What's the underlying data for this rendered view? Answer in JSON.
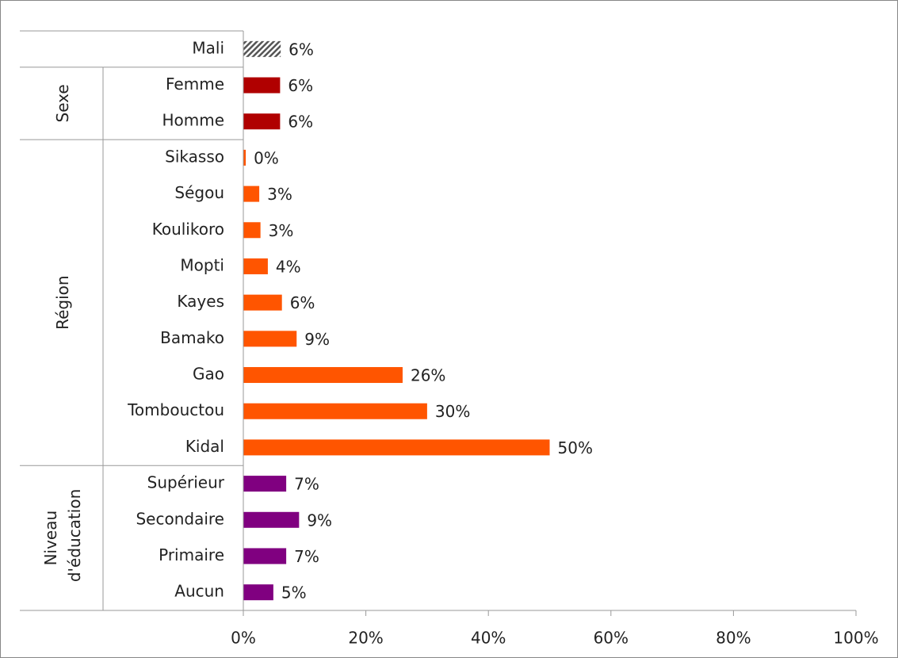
{
  "chart_data": {
    "type": "bar",
    "orientation": "horizontal",
    "groups": [
      {
        "categories": [
          "Mali"
        ],
        "values": [
          6.1
        ],
        "value_labels": [
          "6%"
        ],
        "color": "#555555",
        "hatch": true
      },
      {
        "name": "Sexe",
        "categories": [
          "Femme",
          "Homme"
        ],
        "values": [
          6,
          6
        ],
        "value_labels": [
          "6%",
          "6%"
        ],
        "color": "#b00000"
      },
      {
        "name": "Région",
        "categories": [
          "Sikasso",
          "Ségou",
          "Koulikoro",
          "Mopti",
          "Kayes",
          "Bamako",
          "Gao",
          "Tombouctou",
          "Kidal"
        ],
        "values": [
          0.4,
          2.6,
          2.8,
          4,
          6.3,
          8.7,
          26,
          30,
          50
        ],
        "value_labels": [
          "0%",
          "3%",
          "3%",
          "4%",
          "6%",
          "9%",
          "26%",
          "30%",
          "50%"
        ],
        "color": "#ff5500"
      },
      {
        "name": "Niveau d'éducation",
        "categories": [
          "Supérieur",
          "Secondaire",
          "Primaire",
          "Aucun"
        ],
        "values": [
          7,
          9.1,
          7,
          4.9
        ],
        "value_labels": [
          "7%",
          "9%",
          "7%",
          "5%"
        ],
        "color": "#800080"
      }
    ],
    "xlim": [
      0,
      100
    ],
    "xticks": [
      {
        "value": 0,
        "label": "0%"
      },
      {
        "value": 20,
        "label": "20%"
      },
      {
        "value": 40,
        "label": "40%"
      },
      {
        "value": 60,
        "label": "60%"
      },
      {
        "value": 80,
        "label": "80%"
      },
      {
        "value": 100,
        "label": "100%"
      }
    ],
    "grid": false
  }
}
